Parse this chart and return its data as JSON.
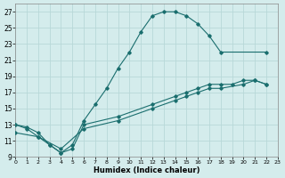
{
  "xlabel": "Humidex (Indice chaleur)",
  "bg_color": "#d4ecec",
  "grid_color": "#b8d8d8",
  "line_color": "#1a6e6e",
  "xlim": [
    0,
    23
  ],
  "ylim": [
    9,
    28
  ],
  "xticks": [
    0,
    1,
    2,
    3,
    4,
    5,
    6,
    7,
    8,
    9,
    10,
    11,
    12,
    13,
    14,
    15,
    16,
    17,
    18,
    19,
    20,
    21,
    22,
    23
  ],
  "yticks": [
    9,
    11,
    13,
    15,
    17,
    19,
    21,
    23,
    25,
    27
  ],
  "curve1_x": [
    0,
    1,
    2,
    3,
    4,
    5,
    6,
    7,
    8,
    9,
    10,
    11,
    12,
    13,
    14,
    15,
    16,
    17,
    18,
    22
  ],
  "curve1_y": [
    13,
    12.7,
    12,
    10.5,
    9.5,
    10.5,
    13.5,
    15.5,
    17.5,
    20,
    22,
    24.5,
    26.5,
    27,
    27,
    26.5,
    25.5,
    24,
    22,
    22
  ],
  "curve2_x": [
    0,
    1,
    2,
    3,
    4,
    5,
    6,
    9,
    12,
    14,
    15,
    16,
    17,
    18,
    19,
    20,
    21,
    22
  ],
  "curve2_y": [
    13,
    12.5,
    11.5,
    10.5,
    9.5,
    10.0,
    13.0,
    14.0,
    15.5,
    16.5,
    17.0,
    17.5,
    18.0,
    18.0,
    18.0,
    18.5,
    18.5,
    18.0
  ],
  "curve3_x": [
    0,
    2,
    4,
    6,
    9,
    12,
    14,
    15,
    16,
    17,
    18,
    20,
    21,
    22
  ],
  "curve3_y": [
    12,
    11.5,
    10.0,
    12.5,
    13.5,
    15.0,
    16.0,
    16.5,
    17.0,
    17.5,
    17.5,
    18.0,
    18.5,
    18.0
  ]
}
